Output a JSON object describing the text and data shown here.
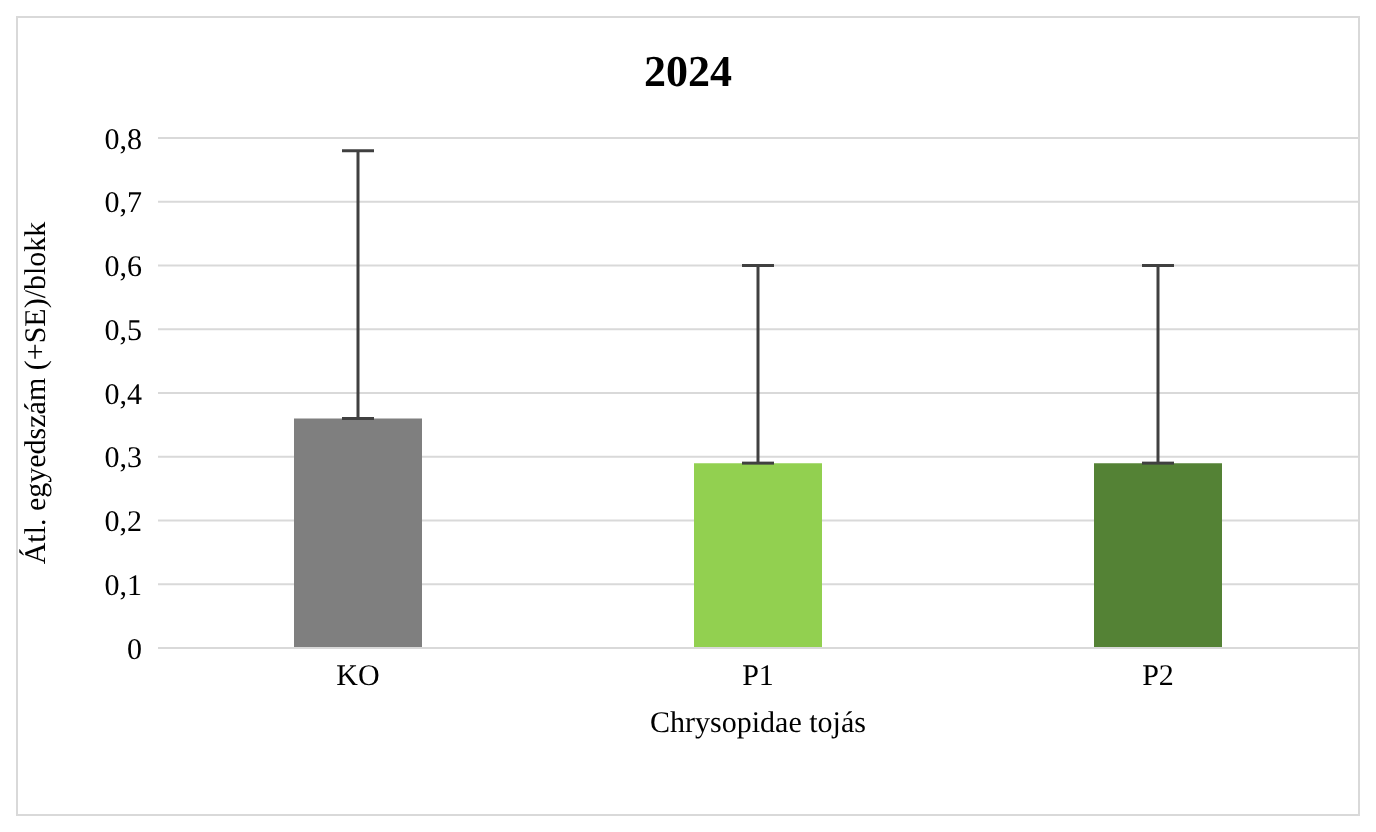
{
  "chart_data": {
    "type": "bar",
    "title": "2024",
    "xlabel": "Chrysopidae tojás",
    "ylabel": "Átl. egyedszám (+SE)/blokk",
    "categories": [
      "KO",
      "P1",
      "P2"
    ],
    "values": [
      0.36,
      0.29,
      0.29
    ],
    "colors": [
      "#7f7f7f",
      "#92d050",
      "#548235"
    ],
    "errors": [
      [
        0.36,
        0.78
      ],
      [
        0.29,
        0.6
      ],
      [
        0.29,
        0.6
      ]
    ],
    "ylim": [
      0,
      0.8
    ],
    "yticks": [
      0,
      {
        "value": 0.1,
        "label": "0,1"
      },
      {
        "value": 0.2,
        "label": "0,2"
      },
      {
        "value": 0.3,
        "label": "0,3"
      },
      {
        "value": 0.4,
        "label": "0,4"
      },
      {
        "value": 0.5,
        "label": "0,5"
      },
      {
        "value": 0.6,
        "label": "0,6"
      },
      {
        "value": 0.7,
        "label": "0,7"
      },
      {
        "value": 0.8,
        "label": "0,8"
      }
    ],
    "grid": "y",
    "legend": false
  }
}
